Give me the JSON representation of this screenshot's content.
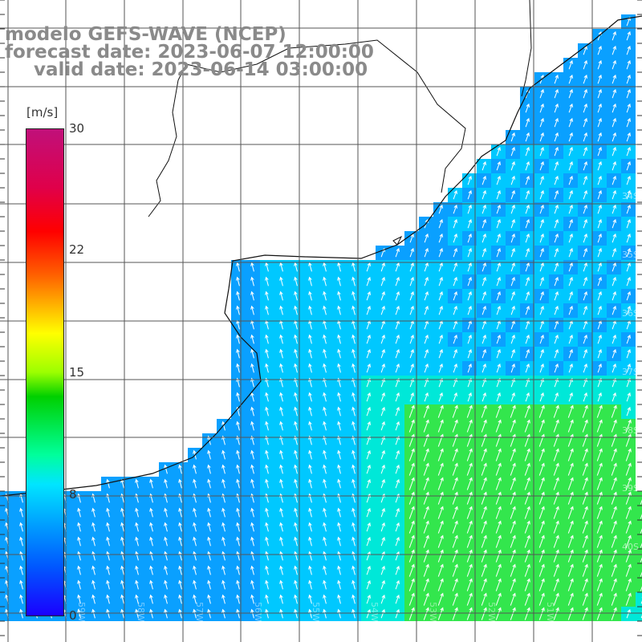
{
  "title": {
    "model": "modelo GEFS-WAVE (NCEP)",
    "forecast": "forecast date: 2023-06-07 12:00:00",
    "valid": "valid date: 2023-06-14 03:00:00"
  },
  "colorbar": {
    "unit": "[m/s]",
    "ticks": [
      "30",
      "22",
      "15",
      "8",
      "0"
    ]
  },
  "latitude_labels": [
    "34S",
    "35S",
    "36S",
    "37S",
    "38S",
    "39S",
    "40S"
  ],
  "longitude_labels": [
    "59W",
    "58W",
    "57W",
    "56W",
    "55W",
    "54W",
    "53W",
    "52W",
    "51W"
  ],
  "colors": {
    "strong_blue": "#1f6bff",
    "mid_blue": "#0aa0ff",
    "light_blue": "#00c8ff",
    "aqua": "#00e8d8",
    "green": "#33e64d",
    "land": "#ffffff",
    "grid": "#555555",
    "title": "#8a8a8a"
  }
}
